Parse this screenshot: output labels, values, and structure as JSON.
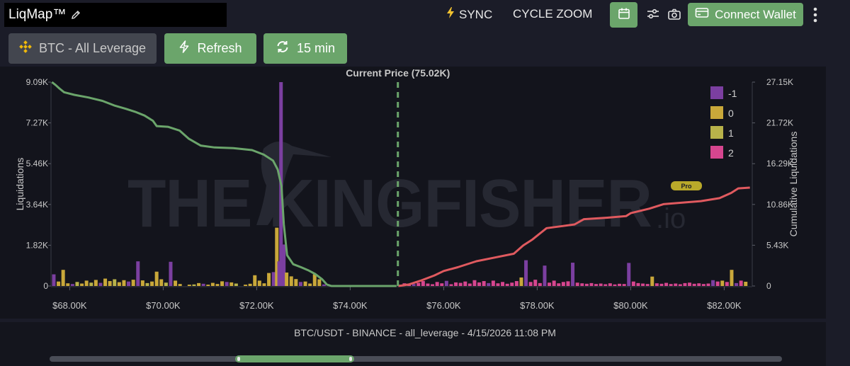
{
  "header": {
    "title": "LiqMap™",
    "sync_label": "SYNC",
    "cycle_zoom_label": "CYCLE ZOOM",
    "connect_wallet_label": "Connect Wallet"
  },
  "controls": {
    "pair_label": "BTC - All Leverage",
    "refresh_label": "Refresh",
    "interval_label": "15 min"
  },
  "footer": {
    "caption": "BTC/USDT - BINANCE - all_leverage - 4/15/2026 11:08 PM"
  },
  "watermark": {
    "text": "THE KINGFISHER",
    "suffix": ".io",
    "badge": "Pro"
  },
  "colors": {
    "accent_green": "#6ba56b",
    "cumulative_left": "#6ba56b",
    "cumulative_right": "#e05a5f",
    "current_price": "#6ba56b"
  },
  "chart_data": {
    "type": "bar",
    "annotation": "Current Price (75.02K)",
    "current_price": 75020,
    "ylabel": "Liquidations",
    "y2label": "Cumulative Liquidations",
    "ylim": [
      0,
      9090
    ],
    "y2lim": [
      0,
      27150
    ],
    "xlim": [
      67600,
      82600
    ],
    "y_ticks": [
      "0",
      "1.82K",
      "3.64K",
      "5.46K",
      "7.27K",
      "9.09K"
    ],
    "y2_ticks": [
      "0",
      "5.43K",
      "10.86K",
      "16.29K",
      "21.72K",
      "27.15K"
    ],
    "x_ticks": [
      "$68.00K",
      "$70.00K",
      "$72.00K",
      "$74.00K",
      "$76.00K",
      "$78.00K",
      "$80.00K",
      "$82.00K"
    ],
    "x_tick_values": [
      68000,
      70000,
      72000,
      74000,
      76000,
      78000,
      80000,
      82000
    ],
    "legend_position": "top-right",
    "legend": [
      {
        "name": "-1",
        "color": "#7b3fa0"
      },
      {
        "name": "0",
        "color": "#c9a83a"
      },
      {
        "name": "1",
        "color": "#b8b24a"
      },
      {
        "name": "2",
        "color": "#d6468f"
      }
    ],
    "bars": [
      {
        "x": 67660,
        "v": 520,
        "s": "-1"
      },
      {
        "x": 67760,
        "v": 200,
        "s": "0"
      },
      {
        "x": 67860,
        "v": 720,
        "s": "0"
      },
      {
        "x": 67960,
        "v": 120,
        "s": "0"
      },
      {
        "x": 68060,
        "v": 90,
        "s": "-1"
      },
      {
        "x": 68160,
        "v": 180,
        "s": "1"
      },
      {
        "x": 68260,
        "v": 110,
        "s": "0"
      },
      {
        "x": 68360,
        "v": 240,
        "s": "0"
      },
      {
        "x": 68460,
        "v": 150,
        "s": "1"
      },
      {
        "x": 68560,
        "v": 270,
        "s": "0"
      },
      {
        "x": 68660,
        "v": 140,
        "s": "-1"
      },
      {
        "x": 68760,
        "v": 330,
        "s": "0"
      },
      {
        "x": 68860,
        "v": 220,
        "s": "0"
      },
      {
        "x": 68960,
        "v": 300,
        "s": "1"
      },
      {
        "x": 69060,
        "v": 170,
        "s": "0"
      },
      {
        "x": 69160,
        "v": 260,
        "s": "0"
      },
      {
        "x": 69260,
        "v": 200,
        "s": "-1"
      },
      {
        "x": 69360,
        "v": 280,
        "s": "0"
      },
      {
        "x": 69460,
        "v": 1100,
        "s": "-1"
      },
      {
        "x": 69560,
        "v": 250,
        "s": "0"
      },
      {
        "x": 69660,
        "v": 130,
        "s": "1"
      },
      {
        "x": 69760,
        "v": 200,
        "s": "0"
      },
      {
        "x": 69860,
        "v": 640,
        "s": "0"
      },
      {
        "x": 69960,
        "v": 300,
        "s": "0"
      },
      {
        "x": 70060,
        "v": 150,
        "s": "1"
      },
      {
        "x": 70160,
        "v": 1080,
        "s": "-1"
      },
      {
        "x": 70260,
        "v": 240,
        "s": "0"
      },
      {
        "x": 70360,
        "v": 90,
        "s": "0"
      },
      {
        "x": 70560,
        "v": 60,
        "s": "0"
      },
      {
        "x": 70660,
        "v": 70,
        "s": "1"
      },
      {
        "x": 70760,
        "v": 130,
        "s": "0"
      },
      {
        "x": 70860,
        "v": 100,
        "s": "-1"
      },
      {
        "x": 70960,
        "v": 60,
        "s": "0"
      },
      {
        "x": 71060,
        "v": 140,
        "s": "0"
      },
      {
        "x": 71160,
        "v": 90,
        "s": "0"
      },
      {
        "x": 71260,
        "v": 210,
        "s": "0"
      },
      {
        "x": 71360,
        "v": 180,
        "s": "-1"
      },
      {
        "x": 71460,
        "v": 160,
        "s": "0"
      },
      {
        "x": 71560,
        "v": 110,
        "s": "1"
      },
      {
        "x": 71760,
        "v": 60,
        "s": "0"
      },
      {
        "x": 71860,
        "v": 100,
        "s": "0"
      },
      {
        "x": 71960,
        "v": 480,
        "s": "0"
      },
      {
        "x": 72060,
        "v": 240,
        "s": "0"
      },
      {
        "x": 72160,
        "v": 120,
        "s": "0"
      },
      {
        "x": 72260,
        "v": 580,
        "s": "0"
      },
      {
        "x": 72360,
        "v": 620,
        "s": "-1"
      },
      {
        "x": 72430,
        "v": 2600,
        "s": "0"
      },
      {
        "x": 72480,
        "v": 1100,
        "s": "-1"
      },
      {
        "x": 72520,
        "v": 9090,
        "s": "-1"
      },
      {
        "x": 72580,
        "v": 1850,
        "s": "-1"
      },
      {
        "x": 72640,
        "v": 600,
        "s": "0"
      },
      {
        "x": 72740,
        "v": 430,
        "s": "0"
      },
      {
        "x": 72840,
        "v": 310,
        "s": "0"
      },
      {
        "x": 72940,
        "v": 180,
        "s": "-1"
      },
      {
        "x": 73040,
        "v": 200,
        "s": "0"
      },
      {
        "x": 73140,
        "v": 110,
        "s": "0"
      },
      {
        "x": 73240,
        "v": 520,
        "s": "0"
      },
      {
        "x": 73340,
        "v": 300,
        "s": "0"
      },
      {
        "x": 73440,
        "v": 70,
        "s": "-1"
      },
      {
        "x": 75060,
        "v": 60,
        "s": "2"
      },
      {
        "x": 75160,
        "v": 120,
        "s": "2"
      },
      {
        "x": 75260,
        "v": 70,
        "s": "2"
      },
      {
        "x": 75360,
        "v": 90,
        "s": "-1"
      },
      {
        "x": 75460,
        "v": 140,
        "s": "2"
      },
      {
        "x": 75560,
        "v": 220,
        "s": "2"
      },
      {
        "x": 75660,
        "v": 110,
        "s": "2"
      },
      {
        "x": 75760,
        "v": 80,
        "s": "2"
      },
      {
        "x": 75860,
        "v": 180,
        "s": "2"
      },
      {
        "x": 75960,
        "v": 120,
        "s": "2"
      },
      {
        "x": 76060,
        "v": 230,
        "s": "-1"
      },
      {
        "x": 76160,
        "v": 80,
        "s": "2"
      },
      {
        "x": 76260,
        "v": 160,
        "s": "2"
      },
      {
        "x": 76360,
        "v": 140,
        "s": "2"
      },
      {
        "x": 76460,
        "v": 200,
        "s": "2"
      },
      {
        "x": 76560,
        "v": 110,
        "s": "2"
      },
      {
        "x": 76660,
        "v": 260,
        "s": "2"
      },
      {
        "x": 76760,
        "v": 160,
        "s": "2"
      },
      {
        "x": 76860,
        "v": 220,
        "s": "2"
      },
      {
        "x": 76960,
        "v": 130,
        "s": "-1"
      },
      {
        "x": 77060,
        "v": 240,
        "s": "2"
      },
      {
        "x": 77160,
        "v": 120,
        "s": "2"
      },
      {
        "x": 77260,
        "v": 180,
        "s": "2"
      },
      {
        "x": 77360,
        "v": 100,
        "s": "2"
      },
      {
        "x": 77460,
        "v": 150,
        "s": "2"
      },
      {
        "x": 77560,
        "v": 220,
        "s": "2"
      },
      {
        "x": 77660,
        "v": 380,
        "s": "0"
      },
      {
        "x": 77760,
        "v": 1150,
        "s": "-1"
      },
      {
        "x": 77860,
        "v": 180,
        "s": "2"
      },
      {
        "x": 77960,
        "v": 280,
        "s": "2"
      },
      {
        "x": 78060,
        "v": 130,
        "s": "2"
      },
      {
        "x": 78160,
        "v": 910,
        "s": "-1"
      },
      {
        "x": 78260,
        "v": 150,
        "s": "2"
      },
      {
        "x": 78360,
        "v": 240,
        "s": "2"
      },
      {
        "x": 78460,
        "v": 120,
        "s": "2"
      },
      {
        "x": 78560,
        "v": 180,
        "s": "2"
      },
      {
        "x": 78660,
        "v": 210,
        "s": "2"
      },
      {
        "x": 78760,
        "v": 1040,
        "s": "-1"
      },
      {
        "x": 78860,
        "v": 150,
        "s": "2"
      },
      {
        "x": 78960,
        "v": 120,
        "s": "2"
      },
      {
        "x": 79060,
        "v": 100,
        "s": "2"
      },
      {
        "x": 79160,
        "v": 130,
        "s": "2"
      },
      {
        "x": 79260,
        "v": 90,
        "s": "2"
      },
      {
        "x": 79360,
        "v": 110,
        "s": "2"
      },
      {
        "x": 79460,
        "v": 80,
        "s": "2"
      },
      {
        "x": 79560,
        "v": 120,
        "s": "2"
      },
      {
        "x": 79660,
        "v": 70,
        "s": "2"
      },
      {
        "x": 79760,
        "v": 100,
        "s": "2"
      },
      {
        "x": 79860,
        "v": 90,
        "s": "2"
      },
      {
        "x": 79960,
        "v": 1030,
        "s": "-1"
      },
      {
        "x": 80060,
        "v": 200,
        "s": "2"
      },
      {
        "x": 80160,
        "v": 130,
        "s": "2"
      },
      {
        "x": 80260,
        "v": 110,
        "s": "2"
      },
      {
        "x": 80360,
        "v": 90,
        "s": "2"
      },
      {
        "x": 80460,
        "v": 420,
        "s": "0"
      },
      {
        "x": 80560,
        "v": 120,
        "s": "2"
      },
      {
        "x": 80660,
        "v": 100,
        "s": "2"
      },
      {
        "x": 80760,
        "v": 140,
        "s": "2"
      },
      {
        "x": 80860,
        "v": 90,
        "s": "2"
      },
      {
        "x": 80960,
        "v": 110,
        "s": "2"
      },
      {
        "x": 81060,
        "v": 80,
        "s": "2"
      },
      {
        "x": 81160,
        "v": 130,
        "s": "2"
      },
      {
        "x": 81260,
        "v": 150,
        "s": "2"
      },
      {
        "x": 81360,
        "v": 100,
        "s": "2"
      },
      {
        "x": 81460,
        "v": 120,
        "s": "2"
      },
      {
        "x": 81560,
        "v": 90,
        "s": "2"
      },
      {
        "x": 81660,
        "v": 110,
        "s": "2"
      },
      {
        "x": 81760,
        "v": 260,
        "s": "-1"
      },
      {
        "x": 81860,
        "v": 200,
        "s": "2"
      },
      {
        "x": 81960,
        "v": 240,
        "s": "0"
      },
      {
        "x": 82060,
        "v": 180,
        "s": "2"
      },
      {
        "x": 82160,
        "v": 720,
        "s": "0"
      },
      {
        "x": 82260,
        "v": 130,
        "s": "-1"
      },
      {
        "x": 82360,
        "v": 240,
        "s": "2"
      },
      {
        "x": 82460,
        "v": 190,
        "s": "0"
      }
    ],
    "cumulative_left": [
      {
        "x": 67620,
        "y": 27150
      },
      {
        "x": 67700,
        "y": 26750
      },
      {
        "x": 67780,
        "y": 26300
      },
      {
        "x": 67880,
        "y": 25800
      },
      {
        "x": 68100,
        "y": 25450
      },
      {
        "x": 68400,
        "y": 25100
      },
      {
        "x": 68700,
        "y": 24650
      },
      {
        "x": 68950,
        "y": 24050
      },
      {
        "x": 69200,
        "y": 23600
      },
      {
        "x": 69400,
        "y": 23200
      },
      {
        "x": 69600,
        "y": 22700
      },
      {
        "x": 69780,
        "y": 22000
      },
      {
        "x": 69860,
        "y": 21300
      },
      {
        "x": 70100,
        "y": 21200
      },
      {
        "x": 70350,
        "y": 20700
      },
      {
        "x": 70550,
        "y": 19600
      },
      {
        "x": 70800,
        "y": 18700
      },
      {
        "x": 71100,
        "y": 18450
      },
      {
        "x": 71500,
        "y": 18350
      },
      {
        "x": 71900,
        "y": 18100
      },
      {
        "x": 72150,
        "y": 17500
      },
      {
        "x": 72350,
        "y": 16700
      },
      {
        "x": 72450,
        "y": 15500
      },
      {
        "x": 72530,
        "y": 13300
      },
      {
        "x": 72580,
        "y": 8200
      },
      {
        "x": 72650,
        "y": 4100
      },
      {
        "x": 72780,
        "y": 2900
      },
      {
        "x": 72950,
        "y": 2500
      },
      {
        "x": 73100,
        "y": 2100
      },
      {
        "x": 73250,
        "y": 1600
      },
      {
        "x": 73400,
        "y": 900
      },
      {
        "x": 73500,
        "y": 200
      },
      {
        "x": 73600,
        "y": 0
      },
      {
        "x": 74990,
        "y": 0
      }
    ],
    "cumulative_right": [
      {
        "x": 75030,
        "y": 0
      },
      {
        "x": 75250,
        "y": 200
      },
      {
        "x": 75500,
        "y": 700
      },
      {
        "x": 75800,
        "y": 1400
      },
      {
        "x": 76000,
        "y": 2000
      },
      {
        "x": 76300,
        "y": 2500
      },
      {
        "x": 76700,
        "y": 3300
      },
      {
        "x": 77100,
        "y": 3800
      },
      {
        "x": 77500,
        "y": 4300
      },
      {
        "x": 77700,
        "y": 5400
      },
      {
        "x": 77900,
        "y": 6200
      },
      {
        "x": 78200,
        "y": 7700
      },
      {
        "x": 78500,
        "y": 7950
      },
      {
        "x": 78800,
        "y": 8200
      },
      {
        "x": 79000,
        "y": 8900
      },
      {
        "x": 79500,
        "y": 9100
      },
      {
        "x": 79900,
        "y": 9300
      },
      {
        "x": 80000,
        "y": 9700
      },
      {
        "x": 80400,
        "y": 10300
      },
      {
        "x": 80700,
        "y": 10900
      },
      {
        "x": 81100,
        "y": 11100
      },
      {
        "x": 81500,
        "y": 11300
      },
      {
        "x": 81900,
        "y": 11700
      },
      {
        "x": 82150,
        "y": 12400
      },
      {
        "x": 82300,
        "y": 13000
      },
      {
        "x": 82550,
        "y": 13100
      }
    ]
  }
}
